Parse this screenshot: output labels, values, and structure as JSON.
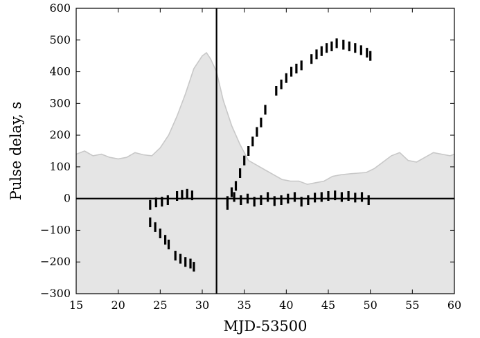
{
  "chart_data": {
    "type": "scatter",
    "title": "",
    "xlabel": "MJD-53500",
    "ylabel": "Pulse delay, s",
    "xlim": [
      15,
      60
    ],
    "ylim": [
      -300,
      600
    ],
    "x_ticks": [
      15,
      20,
      25,
      30,
      35,
      40,
      45,
      50,
      55,
      60
    ],
    "y_ticks": [
      -300,
      -200,
      -100,
      0,
      100,
      200,
      300,
      400,
      500,
      600
    ],
    "x_tick_labels": [
      "15",
      "20",
      "25",
      "30",
      "35",
      "40",
      "45",
      "50",
      "55",
      "60"
    ],
    "y_tick_labels": [
      "−300",
      "−200",
      "−100",
      "0",
      "100",
      "200",
      "300",
      "400",
      "500",
      "600"
    ],
    "grid": false,
    "reference_lines": {
      "horizontal_y": 0,
      "vertical_x": 31.7
    },
    "colors": {
      "background_area": "#e5e5e5",
      "background_line": "#c8c8c8",
      "points": "#000000",
      "axes": "#000000"
    },
    "background_profile": {
      "x": [
        15,
        16,
        17,
        18,
        19,
        20,
        21,
        22,
        23,
        24,
        25,
        26,
        27,
        28,
        29,
        30,
        30.5,
        31,
        31.7,
        32.5,
        33.5,
        34.5,
        35.5,
        36.5,
        37.5,
        38.5,
        39.5,
        40.5,
        41.5,
        42.5,
        43.5,
        44.5,
        45.5,
        46.5,
        47.5,
        48.5,
        49.5,
        50.5,
        51.5,
        52.5,
        53.5,
        54.5,
        55.5,
        56.5,
        57.5,
        58.5,
        59.5,
        60
      ],
      "y": [
        140,
        150,
        135,
        140,
        130,
        125,
        130,
        145,
        138,
        135,
        160,
        200,
        260,
        330,
        410,
        450,
        460,
        440,
        400,
        310,
        230,
        170,
        120,
        105,
        90,
        75,
        60,
        55,
        55,
        45,
        50,
        55,
        70,
        75,
        78,
        80,
        82,
        95,
        115,
        135,
        145,
        120,
        115,
        130,
        145,
        140,
        135,
        140
      ]
    },
    "series": [
      {
        "segments": [
          {
            "x": [
              23.8,
              24.5,
              25.2,
              25.9
            ],
            "y": [
              -20,
              -12,
              -10,
              -5
            ]
          },
          {
            "x": [
              27.0,
              27.6,
              28.2,
              28.8
            ],
            "y": [
              8,
              12,
              15,
              10
            ]
          },
          {
            "x": [
              33.0,
              33.8,
              34.6,
              35.4,
              36.2,
              37.0,
              37.8,
              38.6,
              39.4,
              40.2,
              41.0,
              41.8,
              42.6,
              43.4,
              44.2,
              45.0,
              45.8,
              46.6,
              47.4,
              48.2,
              49.0,
              49.8
            ],
            "y": [
              -8,
              5,
              -5,
              0,
              -10,
              -5,
              5,
              -8,
              -5,
              0,
              5,
              -10,
              -5,
              3,
              5,
              8,
              10,
              5,
              8,
              3,
              5,
              -5
            ]
          },
          {
            "x": [
              23.8,
              24.4,
              25.0,
              25.6,
              26.0
            ],
            "y": [
              -75,
              -90,
              -110,
              -130,
              -145
            ]
          },
          {
            "x": [
              26.8,
              27.4,
              28.0,
              28.6,
              29.0
            ],
            "y": [
              -180,
              -190,
              -200,
              -205,
              -215
            ]
          },
          {
            "x": [
              33.0,
              33.5,
              34.0,
              34.5,
              35.0,
              35.5
            ],
            "y": [
              -20,
              20,
              40,
              80,
              120,
              150
            ]
          },
          {
            "x": [
              36.0,
              36.5,
              37.0,
              37.5
            ],
            "y": [
              180,
              210,
              240,
              280
            ]
          },
          {
            "x": [
              38.8,
              39.4,
              40.0,
              40.6,
              41.2,
              41.8
            ],
            "y": [
              340,
              360,
              380,
              400,
              410,
              420
            ]
          },
          {
            "x": [
              43.0,
              43.6,
              44.2,
              44.8,
              45.4,
              46.0
            ],
            "y": [
              440,
              455,
              465,
              475,
              480,
              490
            ]
          },
          {
            "x": [
              46.8,
              47.5,
              48.2,
              48.9,
              49.6,
              50.0
            ],
            "y": [
              485,
              480,
              475,
              468,
              460,
              450
            ]
          }
        ]
      }
    ]
  }
}
